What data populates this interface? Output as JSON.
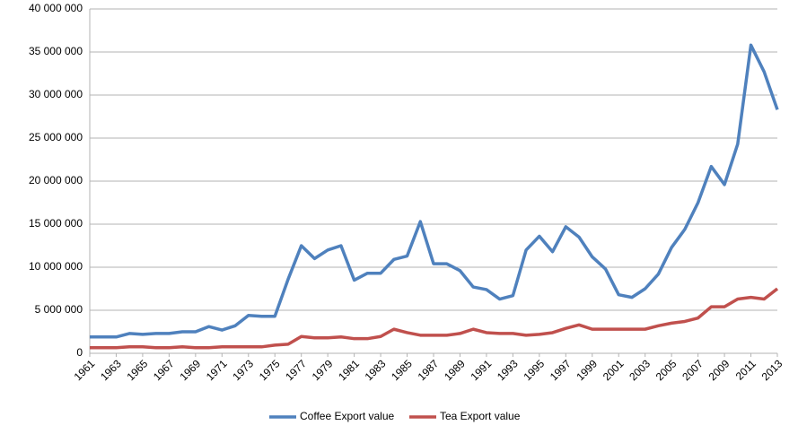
{
  "chart_data": {
    "type": "line",
    "x": [
      1961,
      1962,
      1963,
      1964,
      1965,
      1966,
      1967,
      1968,
      1969,
      1970,
      1971,
      1972,
      1973,
      1974,
      1975,
      1976,
      1977,
      1978,
      1979,
      1980,
      1981,
      1982,
      1983,
      1984,
      1985,
      1986,
      1987,
      1988,
      1989,
      1990,
      1991,
      1992,
      1993,
      1994,
      1995,
      1996,
      1997,
      1998,
      1999,
      2000,
      2001,
      2002,
      2003,
      2004,
      2005,
      2006,
      2007,
      2008,
      2009,
      2010,
      2011,
      2012,
      2013
    ],
    "xlim": [
      1961,
      2013
    ],
    "xticks": [
      1961,
      1963,
      1965,
      1967,
      1969,
      1971,
      1973,
      1975,
      1977,
      1979,
      1981,
      1983,
      1985,
      1987,
      1989,
      1991,
      1993,
      1995,
      1997,
      1999,
      2001,
      2003,
      2005,
      2007,
      2009,
      2011,
      2013
    ],
    "ylim": [
      0,
      40000000
    ],
    "yticks": [
      0,
      {
        "value": 5000000,
        "label": "5 000 000"
      },
      {
        "value": 10000000,
        "label": "10 000 000"
      },
      {
        "value": 15000000,
        "label": "15 000 000"
      },
      {
        "value": 20000000,
        "label": "20 000 000"
      },
      {
        "value": 25000000,
        "label": "25 000 000"
      },
      {
        "value": 30000000,
        "label": "30 000 000"
      },
      {
        "value": 35000000,
        "label": "35 000 000"
      },
      {
        "value": 40000000,
        "label": "40 000 000"
      }
    ],
    "grid": true,
    "legend": "bottom",
    "series": [
      {
        "name": "Coffee Export value",
        "color": "#4f81bd",
        "values": [
          1900000,
          1900000,
          1900000,
          2300000,
          2200000,
          2300000,
          2300000,
          2500000,
          2500000,
          3100000,
          2700000,
          3200000,
          4400000,
          4300000,
          4300000,
          8600000,
          12500000,
          11000000,
          12000000,
          12500000,
          8500000,
          9300000,
          9300000,
          10900000,
          11300000,
          15300000,
          10400000,
          10400000,
          9600000,
          7700000,
          7400000,
          6300000,
          6700000,
          12000000,
          13600000,
          11800000,
          14700000,
          13500000,
          11200000,
          9800000,
          6800000,
          6500000,
          7500000,
          9200000,
          12300000,
          14400000,
          17500000,
          21700000,
          19600000,
          24300000,
          35800000,
          32700000,
          28300000
        ]
      },
      {
        "name": "Tea Export value",
        "color": "#c0504d",
        "values": [
          650000,
          650000,
          650000,
          750000,
          750000,
          650000,
          650000,
          750000,
          650000,
          650000,
          750000,
          750000,
          750000,
          750000,
          950000,
          1050000,
          1950000,
          1800000,
          1800000,
          1900000,
          1700000,
          1700000,
          1950000,
          2800000,
          2400000,
          2100000,
          2100000,
          2100000,
          2300000,
          2800000,
          2400000,
          2300000,
          2300000,
          2100000,
          2200000,
          2400000,
          2900000,
          3300000,
          2800000,
          2800000,
          2800000,
          2800000,
          2800000,
          3200000,
          3500000,
          3700000,
          4100000,
          5400000,
          5400000,
          6300000,
          6500000,
          6300000,
          7500000
        ]
      }
    ]
  }
}
